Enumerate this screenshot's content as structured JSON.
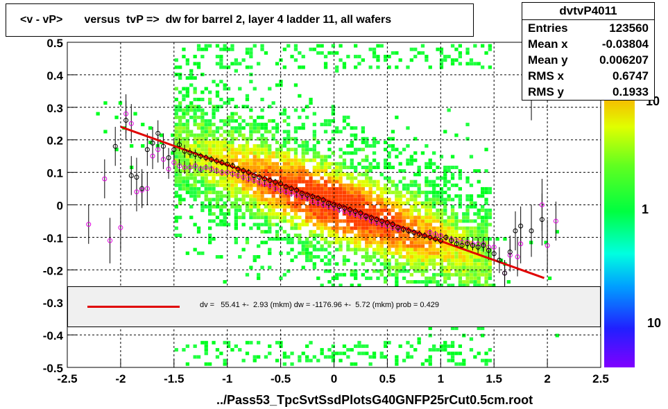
{
  "title": "<v - vP>       versus  tvP =>  dw for barrel 2, layer 4 ladder 11, all wafers",
  "stats": {
    "name": "dvtvP4011",
    "rows": [
      {
        "label": "Entries",
        "value": "123560"
      },
      {
        "label": "Mean x",
        "value": "-0.03804"
      },
      {
        "label": "Mean y",
        "value": "0.006207"
      },
      {
        "label": "RMS x",
        "value": "0.6747"
      },
      {
        "label": "RMS y",
        "value": "0.1933"
      }
    ]
  },
  "fit_text": "dv =   55.41 +-  2.93 (mkm) dw = -1176.96 +-  5.72 (mkm) prob = 0.429",
  "x_title": "../Pass53_TpcSvtSsdPlotsG40GNFP25rCut0.5cm.root",
  "chart_data": {
    "type": "heatmap",
    "xlim": [
      -2.5,
      2.5
    ],
    "ylim": [
      -0.5,
      0.5
    ],
    "x_ticks": [
      "-2.5",
      "-2",
      "-1.5",
      "-1",
      "-0.5",
      "0",
      "0.5",
      "1",
      "1.5",
      "2",
      "2.5"
    ],
    "y_ticks": [
      "-0.5",
      "-0.4",
      "-0.3",
      "-0.2",
      "-0.1",
      "0",
      "0.1",
      "0.2",
      "0.3",
      "0.4",
      "0.5"
    ],
    "grid": true,
    "z_scale": "log",
    "z_labels": [
      "10",
      "1",
      "10"
    ],
    "fit_line": {
      "x": [
        -2.0,
        1.97
      ],
      "y": [
        0.24,
        -0.225
      ]
    },
    "black_points": {
      "x": [
        -2.05,
        -1.95,
        -1.9,
        -1.85,
        -1.8,
        -1.75,
        -1.7,
        -1.65,
        -1.6,
        -1.55,
        -1.5,
        -1.45,
        -1.4,
        -1.35,
        -1.3,
        -1.25,
        -1.2,
        -1.15,
        -1.1,
        -1.05,
        -1.0,
        -0.95,
        -0.9,
        -0.85,
        -0.8,
        -0.75,
        -0.7,
        -0.65,
        -0.6,
        -0.55,
        -0.5,
        -0.45,
        -0.4,
        -0.35,
        -0.3,
        -0.25,
        -0.2,
        -0.15,
        -0.1,
        -0.05,
        0.0,
        0.05,
        0.1,
        0.15,
        0.2,
        0.25,
        0.3,
        0.35,
        0.4,
        0.45,
        0.5,
        0.55,
        0.6,
        0.65,
        0.7,
        0.75,
        0.8,
        0.85,
        0.9,
        0.95,
        1.0,
        1.05,
        1.1,
        1.15,
        1.2,
        1.25,
        1.3,
        1.35,
        1.4,
        1.45,
        1.5,
        1.55,
        1.6,
        1.65,
        1.7,
        1.75,
        1.85,
        1.95
      ],
      "y": [
        0.18,
        0.26,
        0.09,
        0.085,
        0.05,
        0.17,
        0.19,
        0.22,
        0.18,
        0.145,
        0.17,
        0.185,
        0.165,
        0.16,
        0.155,
        0.15,
        0.145,
        0.14,
        0.135,
        0.13,
        0.125,
        0.12,
        0.11,
        0.105,
        0.1,
        0.09,
        0.085,
        0.08,
        0.075,
        0.07,
        0.065,
        0.055,
        0.05,
        0.045,
        0.035,
        0.03,
        0.025,
        0.02,
        0.015,
        0.005,
        0.0,
        -0.005,
        -0.01,
        -0.015,
        -0.02,
        -0.025,
        -0.035,
        -0.04,
        -0.045,
        -0.05,
        -0.055,
        -0.06,
        -0.07,
        -0.075,
        -0.08,
        -0.085,
        -0.09,
        -0.095,
        -0.1,
        -0.105,
        -0.11,
        -0.1,
        -0.11,
        -0.12,
        -0.125,
        -0.12,
        -0.125,
        -0.13,
        -0.125,
        -0.14,
        -0.15,
        -0.17,
        -0.21,
        -0.145,
        -0.08,
        -0.065,
        -0.08,
        -0.045
      ],
      "err": [
        0.06,
        0.06,
        0.06,
        0.06,
        0.06,
        0.05,
        0.05,
        0.04,
        0.04,
        0.03,
        0.03,
        0.02,
        0.02,
        0.015,
        0.015,
        0.01,
        0.01,
        0.01,
        0.01,
        0.01,
        0.01,
        0.01,
        0.01,
        0.01,
        0.01,
        0.01,
        0.01,
        0.01,
        0.01,
        0.01,
        0.01,
        0.01,
        0.01,
        0.01,
        0.01,
        0.01,
        0.01,
        0.01,
        0.01,
        0.01,
        0.01,
        0.01,
        0.01,
        0.01,
        0.01,
        0.01,
        0.01,
        0.01,
        0.01,
        0.01,
        0.01,
        0.01,
        0.01,
        0.01,
        0.01,
        0.01,
        0.01,
        0.01,
        0.01,
        0.01,
        0.01,
        0.01,
        0.01,
        0.01,
        0.01,
        0.015,
        0.015,
        0.02,
        0.02,
        0.03,
        0.03,
        0.04,
        0.04,
        0.05,
        0.06,
        0.06,
        0.08,
        0.08
      ]
    },
    "magenta_points": {
      "x": [
        -2.3,
        -2.15,
        -2.1,
        -2.0,
        -1.95,
        -1.9,
        -1.85,
        -1.8,
        -1.75,
        -1.7,
        -1.65,
        -1.6,
        -1.55,
        -1.5,
        -1.45,
        -1.4,
        -1.35,
        -1.3,
        -1.25,
        -1.2,
        -1.15,
        -1.1,
        -1.05,
        -1.0,
        -0.95,
        -0.9,
        -0.85,
        -0.8,
        -0.75,
        -0.7,
        -0.65,
        -0.6,
        -0.55,
        -0.5,
        -0.45,
        -0.4,
        -0.35,
        -0.3,
        -0.25,
        -0.2,
        -0.15,
        -0.1,
        -0.05,
        0.0,
        0.05,
        0.1,
        0.15,
        0.2,
        0.25,
        0.3,
        0.35,
        0.4,
        0.45,
        0.5,
        0.55,
        0.6,
        0.65,
        0.7,
        0.75,
        0.8,
        0.85,
        0.9,
        0.95,
        1.0,
        1.05,
        1.1,
        1.15,
        1.2,
        1.25,
        1.3,
        1.35,
        1.4,
        1.45,
        1.5,
        1.6,
        1.65,
        1.72,
        1.75,
        1.85,
        1.95,
        2.0,
        2.08
      ],
      "y": [
        -0.06,
        0.08,
        -0.11,
        -0.07,
        0.28,
        0.25,
        0.04,
        0.045,
        0.05,
        0.15,
        0.17,
        0.14,
        0.11,
        0.13,
        0.12,
        0.115,
        0.115,
        0.12,
        0.11,
        0.115,
        0.11,
        0.105,
        0.1,
        0.1,
        0.095,
        0.09,
        0.085,
        0.08,
        0.075,
        0.07,
        0.065,
        0.06,
        0.05,
        0.045,
        0.04,
        0.035,
        0.03,
        0.025,
        0.02,
        0.01,
        0.005,
        0.0,
        -0.005,
        -0.01,
        -0.015,
        -0.02,
        -0.025,
        -0.03,
        -0.035,
        -0.04,
        -0.05,
        -0.055,
        -0.06,
        -0.065,
        -0.07,
        -0.075,
        -0.075,
        -0.08,
        -0.085,
        -0.09,
        -0.095,
        -0.085,
        -0.09,
        -0.095,
        -0.1,
        -0.105,
        -0.11,
        -0.115,
        -0.115,
        -0.12,
        -0.12,
        -0.12,
        -0.13,
        -0.13,
        -0.21,
        -0.155,
        -0.16,
        -0.12,
        0.34,
        0.0,
        -0.125,
        -0.05
      ],
      "err": [
        0.06,
        0.06,
        0.07,
        0.07,
        0.06,
        0.06,
        0.06,
        0.05,
        0.05,
        0.04,
        0.04,
        0.03,
        0.03,
        0.02,
        0.02,
        0.02,
        0.015,
        0.015,
        0.01,
        0.01,
        0.01,
        0.01,
        0.01,
        0.01,
        0.01,
        0.01,
        0.01,
        0.01,
        0.01,
        0.01,
        0.01,
        0.01,
        0.01,
        0.01,
        0.01,
        0.01,
        0.01,
        0.01,
        0.01,
        0.01,
        0.01,
        0.01,
        0.01,
        0.01,
        0.01,
        0.01,
        0.01,
        0.01,
        0.01,
        0.01,
        0.01,
        0.01,
        0.01,
        0.01,
        0.01,
        0.01,
        0.01,
        0.01,
        0.01,
        0.01,
        0.01,
        0.01,
        0.01,
        0.01,
        0.01,
        0.01,
        0.01,
        0.015,
        0.015,
        0.02,
        0.02,
        0.02,
        0.03,
        0.03,
        0.04,
        0.05,
        0.06,
        0.06,
        0.08,
        0.08,
        0.08,
        0.06
      ]
    }
  }
}
